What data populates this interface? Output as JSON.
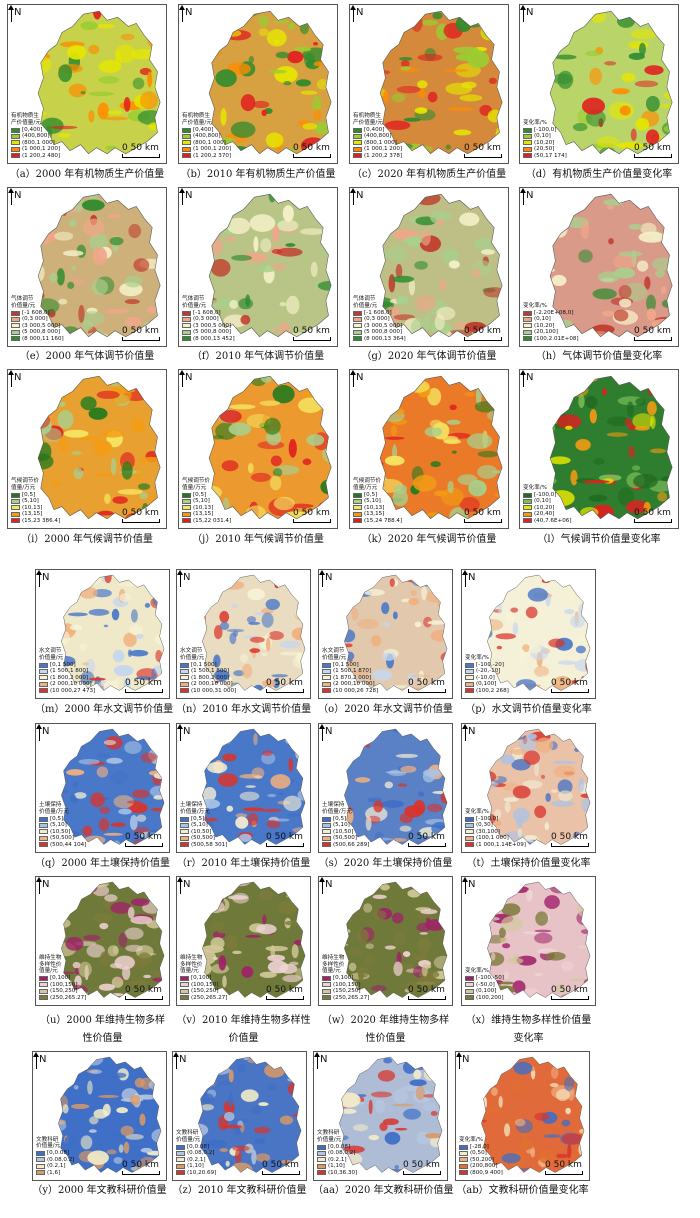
{
  "common": {
    "north": "N",
    "scale": "0  50 km"
  },
  "panels": [
    {
      "id": "a",
      "caption": "（a）2000 年有机物质生产价值量",
      "legend_title": "有机物质生\n产价值量/元",
      "legend": [
        "[0,400]",
        "(400,800]",
        "(800,1 000]",
        "(1 000,1 200]",
        "(1 200,2 480]"
      ],
      "colors": [
        "#2e8b2e",
        "#9acd32",
        "#e6e600",
        "#ff8c00",
        "#e02020"
      ],
      "base": "#c7d24a"
    },
    {
      "id": "b",
      "caption": "（b）2010 年有机物质生产价值量",
      "legend_title": "有机物质生\n产价值量/元",
      "legend": [
        "[0,400]",
        "(400,800]",
        "(800,1 000]",
        "(1 000,1 200]",
        "(1 200,2 370]"
      ],
      "colors": [
        "#2e8b2e",
        "#9acd32",
        "#e6e600",
        "#ff8c00",
        "#e02020"
      ],
      "base": "#d7a040"
    },
    {
      "id": "c",
      "caption": "（c）2020 年有机物质生产价值量",
      "legend_title": "有机物质生\n产价值量/元",
      "legend": [
        "[0,400]",
        "(400,800]",
        "(800,1 000]",
        "(1 000,1 200]",
        "(1 200,2 378]"
      ],
      "colors": [
        "#2e8b2e",
        "#9acd32",
        "#e6e600",
        "#ff8c00",
        "#e02020"
      ],
      "base": "#d48a3a"
    },
    {
      "id": "d",
      "caption": "（d）有机物质生产价值量变化率",
      "legend_title": "变化率/%",
      "legend": [
        "[-100,0]",
        "(0,10]",
        "(10,20]",
        "(20,50]",
        "(50,17 174]"
      ],
      "colors": [
        "#2e8b2e",
        "#9acd32",
        "#e6e600",
        "#ff8c00",
        "#e02020"
      ],
      "base": "#b9d56a"
    },
    {
      "id": "e",
      "caption": "（e）2000 年气体调节价值量",
      "legend_title": "气体调节\n价值量/元",
      "legend": [
        "[-1 608,0]",
        "(0,3 000]",
        "(3 000,5 000]",
        "(5 000,8 000]",
        "(8 000,11 160]"
      ],
      "colors": [
        "#c0392b",
        "#f0a68a",
        "#f5f0c8",
        "#a8d08d",
        "#2e8b2e"
      ],
      "base": "#cdb07a"
    },
    {
      "id": "f",
      "caption": "（f）2010 年气体调节价值量",
      "legend_title": "气体调节\n价值量/元",
      "legend": [
        "[-1 608,0]",
        "(0,3 000]",
        "(3 000,5 000]",
        "(5 000,8 000]",
        "(8 000,13 452]"
      ],
      "colors": [
        "#c0392b",
        "#f0a68a",
        "#f5f0c8",
        "#a8d08d",
        "#2e8b2e"
      ],
      "base": "#b9c487"
    },
    {
      "id": "g",
      "caption": "（g）2020 年气体调节价值量",
      "legend_title": "气体调节\n价值量/元",
      "legend": [
        "[-1 608,0]",
        "(0,3 000]",
        "(3 000,5 000]",
        "(5 000,8 000]",
        "(8 000,13 364]"
      ],
      "colors": [
        "#c0392b",
        "#f0a68a",
        "#f5f0c8",
        "#a8d08d",
        "#2e8b2e"
      ],
      "base": "#bdbf86"
    },
    {
      "id": "h",
      "caption": "（h）气体调节价值量变化率",
      "legend_title": "变化率/%",
      "legend": [
        "[-2.20E+08,0]",
        "(0,10]",
        "(10,20]",
        "(20,100]",
        "(100,2.01E+08]"
      ],
      "colors": [
        "#c0392b",
        "#f0a68a",
        "#f5f0c8",
        "#a8d08d",
        "#2e8b2e"
      ],
      "base": "#d99a8a"
    },
    {
      "id": "i",
      "caption": "（i）2000 年气候调节价值量",
      "legend_title": "气候调节价\n值量/万元",
      "legend": [
        "[0,5]",
        "(5,10]",
        "(10,13]",
        "(13,15]",
        "(15,23 386.4]"
      ],
      "colors": [
        "#1f7a1f",
        "#a8d08d",
        "#f5e663",
        "#f39c12",
        "#e02020"
      ],
      "base": "#e8a030"
    },
    {
      "id": "j",
      "caption": "（j）2010 年气候调节价值量",
      "legend_title": "气候调节价\n值量/万元",
      "legend": [
        "[0,5]",
        "(5,10]",
        "(10,13]",
        "(13,15]",
        "(15,22 031.4]"
      ],
      "colors": [
        "#1f7a1f",
        "#a8d08d",
        "#f5e663",
        "#f39c12",
        "#e02020"
      ],
      "base": "#ec9a30"
    },
    {
      "id": "k",
      "caption": "（k）2020 年气候调节价值量",
      "legend_title": "气候调节价\n值量/万元",
      "legend": [
        "[0,5]",
        "(5,10]",
        "(10,13]",
        "(13,15]",
        "(15,24 788.4]"
      ],
      "colors": [
        "#1f7a1f",
        "#a8d08d",
        "#f5e663",
        "#f39c12",
        "#e02020"
      ],
      "base": "#ea7a28"
    },
    {
      "id": "l",
      "caption": "（l）气候调节价值量变化率",
      "legend_title": "变化率/%",
      "legend": [
        "[-100,0]",
        "(0,10]",
        "(10,20]",
        "(20,40]",
        "(40,7.6E+06]"
      ],
      "colors": [
        "#1f6b1f",
        "#7cbf5a",
        "#e6e600",
        "#f39c12",
        "#e02020"
      ],
      "base": "#2f7d2f"
    },
    {
      "id": "m",
      "caption": "（m）2000 年水文调节价值量",
      "legend_title": "水文调节\n价值量/元",
      "legend": [
        "[0,1 500]",
        "(1 500,1 800]",
        "(1 800,2 000]",
        "(2 000,10 000]",
        "(10 000,27 473]"
      ],
      "colors": [
        "#4a78c8",
        "#c6d7ee",
        "#f7f3d6",
        "#f0b080",
        "#d9342b"
      ],
      "base": "#efe9c9"
    },
    {
      "id": "n",
      "caption": "（n）2010 年水文调节价值量",
      "legend_title": "水文调节\n价值量/元",
      "legend": [
        "[0,1 500]",
        "(1 500,1 800]",
        "(1 800,2 000]",
        "(2 000,10 000]",
        "(10 000,31 000]"
      ],
      "colors": [
        "#4a78c8",
        "#c6d7ee",
        "#f7f3d6",
        "#f0b080",
        "#d9342b"
      ],
      "base": "#e9dcc0"
    },
    {
      "id": "o",
      "caption": "（o）2020 年水文调节价值量",
      "legend_title": "水文调节\n价值量/元",
      "legend": [
        "[0,1 500]",
        "(1 500,1 870]",
        "(1 870,2 000]",
        "(2 000,10 000]",
        "(10 000,26 728]"
      ],
      "colors": [
        "#4a78c8",
        "#c6d7ee",
        "#f7f3d6",
        "#f0b080",
        "#d9342b"
      ],
      "base": "#e2c9ae"
    },
    {
      "id": "p",
      "caption": "（p）水文调节价值量变化率",
      "legend_title": "变化率/%",
      "legend": [
        "[-100,-20]",
        "(-20,-10]",
        "(-10,0]",
        "(0,100]",
        "(100,2 268]"
      ],
      "colors": [
        "#4a78c8",
        "#c6d7ee",
        "#f7f3d6",
        "#f0b080",
        "#d9342b"
      ],
      "base": "#f5f1d8"
    },
    {
      "id": "q",
      "caption": "（q）2000 年土壤保持价值量",
      "legend_title": "土壤保持\n价值量/万元",
      "legend": [
        "[0,5]",
        "(5,10]",
        "(10,50]",
        "(50,500]",
        "(500,44 104]"
      ],
      "colors": [
        "#3f6fc6",
        "#a9c3e6",
        "#f2ecd4",
        "#f0b080",
        "#d9342b"
      ],
      "base": "#4a78c8"
    },
    {
      "id": "r",
      "caption": "（r）2010 年土壤保持价值量",
      "legend_title": "土壤保持\n价值量/万元",
      "legend": [
        "[0,5]",
        "(5,10]",
        "(10,50]",
        "(50,500]",
        "(500,58 301]"
      ],
      "colors": [
        "#3f6fc6",
        "#a9c3e6",
        "#f2ecd4",
        "#f0b080",
        "#d9342b"
      ],
      "base": "#4a78c8"
    },
    {
      "id": "s",
      "caption": "（s）2020 年土壤保持价值量",
      "legend_title": "土壤保持\n价值量/万元",
      "legend": [
        "[0,5]",
        "(5,10]",
        "(10,50]",
        "(50,500]",
        "(500,66 289]"
      ],
      "colors": [
        "#3f6fc6",
        "#a9c3e6",
        "#f2ecd4",
        "#f0b080",
        "#d9342b"
      ],
      "base": "#5a80c6"
    },
    {
      "id": "t",
      "caption": "（t）土壤保持价值量变化率",
      "legend_title": "变化率/%",
      "legend": [
        "[-100,0]",
        "(0,30]",
        "(30,100]",
        "(100,1 000]",
        "(1 000,1.14E+09]"
      ],
      "colors": [
        "#3f6fc6",
        "#a9c3e6",
        "#f2ecd4",
        "#f0b080",
        "#d9342b"
      ],
      "base": "#e9c2a8"
    },
    {
      "id": "u",
      "caption": "（u）2000 年维持生物多样性价值量",
      "legend_title": "维持生物\n多样性价\n值量/元",
      "legend": [
        "[0,100]",
        "(100,150]",
        "(150,250]",
        "(250,265.27]"
      ],
      "colors": [
        "#a0206a",
        "#efd3d3",
        "#d2c89a",
        "#7d7a3a"
      ],
      "base": "#6f7a3a"
    },
    {
      "id": "v",
      "caption": "（v）2010 年维持生物多样性价值量",
      "legend_title": "维持生物\n多样性价\n值量/元",
      "legend": [
        "[0,100]",
        "(100,150]",
        "(150,250]",
        "(250,265.27]"
      ],
      "colors": [
        "#a0206a",
        "#efd3d3",
        "#d2c89a",
        "#7d7a3a"
      ],
      "base": "#6f7a3a"
    },
    {
      "id": "w",
      "caption": "（w）2020 年维持生物多样性价值量",
      "legend_title": "维持生物\n多样性价\n值量/元",
      "legend": [
        "[0,100]",
        "(100,150]",
        "(150,250]",
        "(250,265.27]"
      ],
      "colors": [
        "#a0206a",
        "#efd3d3",
        "#d2c89a",
        "#7d7a3a"
      ],
      "base": "#6f7a3a"
    },
    {
      "id": "x",
      "caption": "（x）维持生物多样性价值量变化率",
      "legend_title": "变化率/%",
      "legend": [
        "[-100,-50]",
        "(-50,0]",
        "(0,100]",
        "(100,200]"
      ],
      "colors": [
        "#a0206a",
        "#efd3d3",
        "#d2c89a",
        "#7d7a3a"
      ],
      "base": "#e7c3c8"
    },
    {
      "id": "y",
      "caption": "（y）2000 年文教科研价值量",
      "legend_title": "文教科研\n价值量/元",
      "legend": [
        "[0,0.08]",
        "(0.08,0.2]",
        "(0.2,1]",
        "(1,6]"
      ],
      "colors": [
        "#3f6fc6",
        "#b7c6e0",
        "#f3ecc8",
        "#d99a66"
      ],
      "base": "#3f6fc6"
    },
    {
      "id": "z",
      "caption": "（z）2010 年文教科研价值量",
      "legend_title": "文教科研\n价值量/元",
      "legend": [
        "[0,0.08]",
        "(0.08,0.2]",
        "(0.2,1]",
        "(1,10]",
        "(10,20.69]"
      ],
      "colors": [
        "#3f6fc6",
        "#b7c6e0",
        "#f3ecc8",
        "#d99a66",
        "#d9342b"
      ],
      "base": "#4a74c4"
    },
    {
      "id": "aa",
      "caption": "（aa）2020 年文教科研价值量",
      "legend_title": "文教科研\n价值量/元",
      "legend": [
        "[0,0.08]",
        "(0.08,0.2]",
        "(0.2,1]",
        "(1,10]",
        "(10,36.30]"
      ],
      "colors": [
        "#3f6fc6",
        "#b7c6e0",
        "#f3ecc8",
        "#d99a66",
        "#d9342b"
      ],
      "base": "#aebcd6"
    },
    {
      "id": "ab",
      "caption": "（ab）文教科研价值量变化率",
      "legend_title": "变化率/%",
      "legend": [
        "[-28,0]",
        "(0,50]",
        "(50,200]",
        "(200,800]",
        "(800,9 400]"
      ],
      "colors": [
        "#3f6fc6",
        "#f3ecc8",
        "#f0b080",
        "#e07030",
        "#d9342b"
      ],
      "base": "#e06a3a"
    }
  ]
}
